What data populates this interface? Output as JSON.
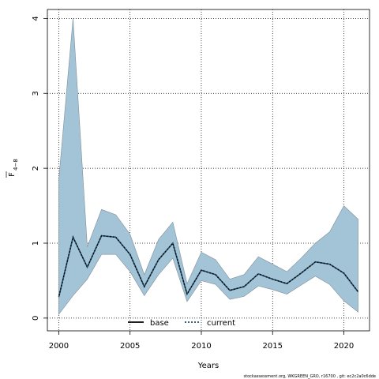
{
  "chart_data": {
    "type": "area",
    "xlabel": "Years",
    "ylabel_main": "F",
    "ylabel_sub": "4−8",
    "xlim": [
      1999.2,
      2021.8
    ],
    "ylim": [
      -0.17,
      4.12
    ],
    "x_ticks": [
      2000,
      2005,
      2010,
      2015,
      2020
    ],
    "y_ticks": [
      0,
      1,
      2,
      3,
      4
    ],
    "grid": true,
    "legend_position": "bottom-center",
    "x": [
      2000,
      2001,
      2002,
      2003,
      2004,
      2005,
      2006,
      2007,
      2008,
      2009,
      2010,
      2011,
      2012,
      2013,
      2014,
      2015,
      2016,
      2017,
      2018,
      2019,
      2020,
      2021
    ],
    "series": [
      {
        "name": "base",
        "color": "#000000",
        "values": [
          0.28,
          1.08,
          0.68,
          1.1,
          1.08,
          0.85,
          0.42,
          0.78,
          1.0,
          0.32,
          0.64,
          0.58,
          0.37,
          0.42,
          0.59,
          0.52,
          0.46,
          0.6,
          0.75,
          0.72,
          0.6,
          0.35
        ]
      },
      {
        "name": "current",
        "color": "#1a4a6b",
        "values": [
          0.28,
          1.08,
          0.68,
          1.1,
          1.08,
          0.85,
          0.42,
          0.78,
          1.0,
          0.32,
          0.64,
          0.58,
          0.37,
          0.42,
          0.59,
          0.52,
          0.46,
          0.6,
          0.75,
          0.72,
          0.6,
          0.35
        ]
      }
    ],
    "band": {
      "color": "#a3c4d6",
      "upper": [
        1.85,
        4.0,
        0.95,
        1.45,
        1.38,
        1.12,
        0.58,
        1.05,
        1.28,
        0.46,
        0.88,
        0.78,
        0.52,
        0.58,
        0.82,
        0.72,
        0.62,
        0.8,
        1.0,
        1.15,
        1.5,
        1.32
      ],
      "lower": [
        0.05,
        0.3,
        0.52,
        0.85,
        0.85,
        0.62,
        0.3,
        0.58,
        0.8,
        0.22,
        0.5,
        0.45,
        0.25,
        0.29,
        0.43,
        0.38,
        0.32,
        0.44,
        0.56,
        0.45,
        0.23,
        0.08
      ]
    }
  },
  "footer": "stockassessment.org, WKGREEN_GRO, r16700 , git: ec2c2a0c6dde"
}
